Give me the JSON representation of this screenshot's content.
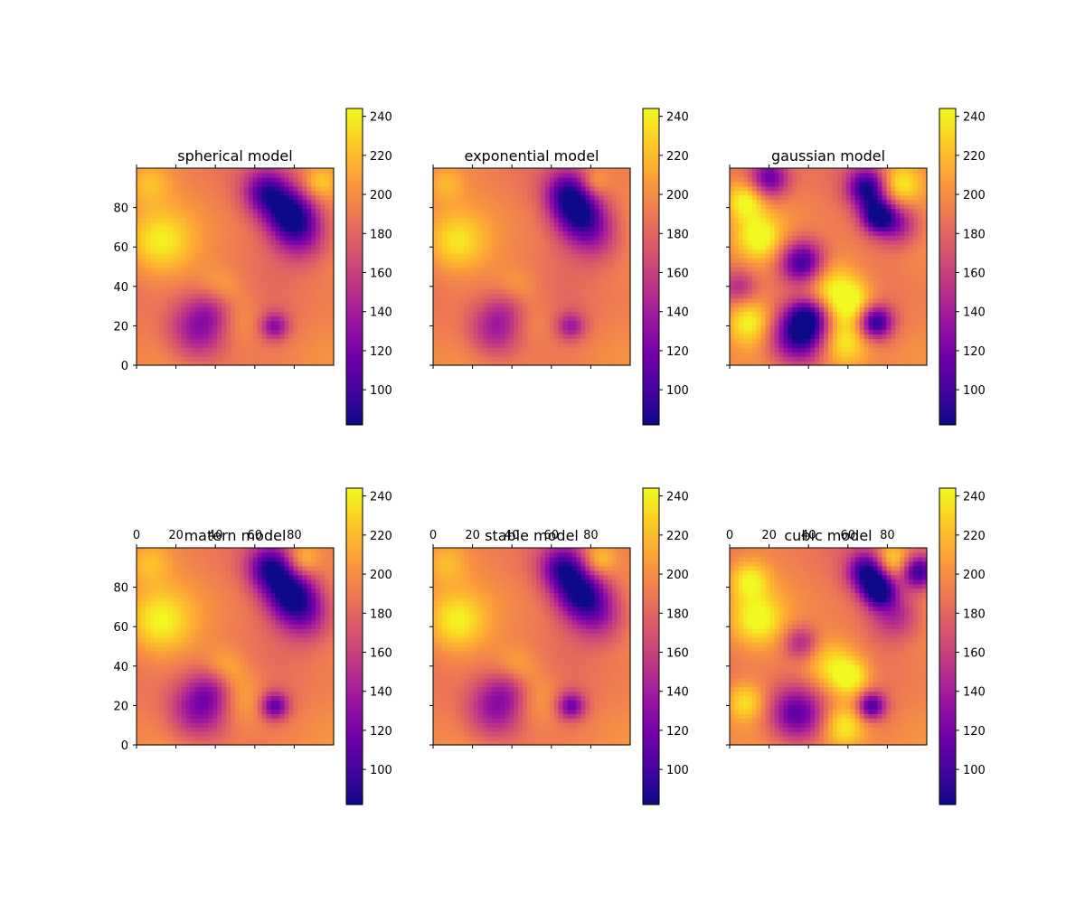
{
  "colormap": {
    "name": "plasma",
    "stops": [
      "#0d0887",
      "#46039f",
      "#7201a8",
      "#9c179e",
      "#bd3786",
      "#d8576b",
      "#ed7953",
      "#fb9f3a",
      "#fdca26",
      "#f0f921"
    ]
  },
  "chart_data": [
    {
      "type": "heatmap",
      "title": "spherical model",
      "x_tick_labels": [
        "",
        "",
        "",
        "",
        ""
      ],
      "y_tick_labels": [
        "0",
        "20",
        "40",
        "60",
        "80"
      ],
      "xlim": [
        0,
        100
      ],
      "ylim": [
        0,
        100
      ],
      "colorbar": {
        "range": [
          82,
          244
        ],
        "ticks": [
          "100",
          "120",
          "140",
          "160",
          "180",
          "200",
          "220",
          "240"
        ]
      },
      "features": [
        {
          "x": 12,
          "y": 63,
          "value": 232,
          "radius": 11
        },
        {
          "x": 78,
          "y": 77,
          "value": 95,
          "radius": 9
        },
        {
          "x": 66,
          "y": 88,
          "value": 110,
          "radius": 8
        },
        {
          "x": 84,
          "y": 66,
          "value": 135,
          "radius": 10
        },
        {
          "x": 32,
          "y": 18,
          "value": 125,
          "radius": 11
        },
        {
          "x": 40,
          "y": 30,
          "value": 150,
          "radius": 8
        },
        {
          "x": 70,
          "y": 20,
          "value": 130,
          "radius": 5
        },
        {
          "x": 48,
          "y": 24,
          "value": 222,
          "radius": 10
        },
        {
          "x": 42,
          "y": 38,
          "value": 224,
          "radius": 8
        },
        {
          "x": 93,
          "y": 93,
          "value": 228,
          "radius": 6
        },
        {
          "x": 6,
          "y": 93,
          "value": 222,
          "radius": 8
        }
      ]
    },
    {
      "type": "heatmap",
      "title": "exponential model",
      "x_tick_labels": [
        "",
        "",
        "",
        "",
        ""
      ],
      "y_tick_labels": [
        "",
        "",
        "",
        "",
        ""
      ],
      "xlim": [
        0,
        100
      ],
      "ylim": [
        0,
        100
      ],
      "colorbar": {
        "range": [
          82,
          244
        ],
        "ticks": [
          "100",
          "120",
          "140",
          "160",
          "180",
          "200",
          "220",
          "240"
        ]
      },
      "features": [
        {
          "x": 12,
          "y": 63,
          "value": 228,
          "radius": 10
        },
        {
          "x": 74,
          "y": 77,
          "value": 105,
          "radius": 9
        },
        {
          "x": 68,
          "y": 88,
          "value": 118,
          "radius": 8
        },
        {
          "x": 82,
          "y": 66,
          "value": 145,
          "radius": 10
        },
        {
          "x": 32,
          "y": 18,
          "value": 135,
          "radius": 10
        },
        {
          "x": 40,
          "y": 30,
          "value": 155,
          "radius": 8
        },
        {
          "x": 70,
          "y": 20,
          "value": 140,
          "radius": 5
        },
        {
          "x": 46,
          "y": 24,
          "value": 218,
          "radius": 9
        },
        {
          "x": 42,
          "y": 38,
          "value": 220,
          "radius": 8
        },
        {
          "x": 82,
          "y": 93,
          "value": 222,
          "radius": 5
        },
        {
          "x": 6,
          "y": 93,
          "value": 218,
          "radius": 7
        }
      ]
    },
    {
      "type": "heatmap",
      "title": "gaussian model",
      "x_tick_labels": [
        "",
        "",
        "",
        "",
        ""
      ],
      "y_tick_labels": [
        "",
        "",
        "",
        "",
        ""
      ],
      "xlim": [
        0,
        100
      ],
      "ylim": [
        0,
        100
      ],
      "colorbar": {
        "range": [
          82,
          244
        ],
        "ticks": [
          "100",
          "120",
          "140",
          "160",
          "180",
          "200",
          "220",
          "240"
        ]
      },
      "features": [
        {
          "x": 70,
          "y": 90,
          "value": 85,
          "radius": 7
        },
        {
          "x": 75,
          "y": 76,
          "value": 90,
          "radius": 6
        },
        {
          "x": 86,
          "y": 92,
          "value": 244,
          "radius": 8
        },
        {
          "x": 85,
          "y": 72,
          "value": 130,
          "radius": 8
        },
        {
          "x": 37,
          "y": 52,
          "value": 85,
          "radius": 8
        },
        {
          "x": 50,
          "y": 40,
          "value": 244,
          "radius": 11
        },
        {
          "x": 62,
          "y": 32,
          "value": 244,
          "radius": 8
        },
        {
          "x": 74,
          "y": 22,
          "value": 85,
          "radius": 6
        },
        {
          "x": 58,
          "y": 12,
          "value": 244,
          "radius": 9
        },
        {
          "x": 35,
          "y": 15,
          "value": 85,
          "radius": 10
        },
        {
          "x": 40,
          "y": 25,
          "value": 110,
          "radius": 7
        },
        {
          "x": 8,
          "y": 84,
          "value": 244,
          "radius": 7
        },
        {
          "x": 15,
          "y": 65,
          "value": 244,
          "radius": 8
        },
        {
          "x": 20,
          "y": 95,
          "value": 110,
          "radius": 7
        },
        {
          "x": 10,
          "y": 22,
          "value": 244,
          "radius": 8
        },
        {
          "x": 5,
          "y": 40,
          "value": 150,
          "radius": 6
        }
      ]
    },
    {
      "type": "heatmap",
      "title": "matern model",
      "x_tick_labels": [
        "0",
        "20",
        "40",
        "60",
        "80"
      ],
      "y_tick_labels": [
        "0",
        "20",
        "40",
        "60",
        "80"
      ],
      "xlim": [
        0,
        100
      ],
      "ylim": [
        0,
        100
      ],
      "colorbar": {
        "range": [
          82,
          244
        ],
        "ticks": [
          "100",
          "120",
          "140",
          "160",
          "180",
          "200",
          "220",
          "240"
        ]
      },
      "features": [
        {
          "x": 12,
          "y": 63,
          "value": 235,
          "radius": 11
        },
        {
          "x": 78,
          "y": 77,
          "value": 92,
          "radius": 9
        },
        {
          "x": 68,
          "y": 90,
          "value": 100,
          "radius": 8
        },
        {
          "x": 86,
          "y": 66,
          "value": 132,
          "radius": 10
        },
        {
          "x": 32,
          "y": 18,
          "value": 122,
          "radius": 11
        },
        {
          "x": 40,
          "y": 30,
          "value": 148,
          "radius": 8
        },
        {
          "x": 70,
          "y": 20,
          "value": 110,
          "radius": 5
        },
        {
          "x": 52,
          "y": 24,
          "value": 226,
          "radius": 10
        },
        {
          "x": 44,
          "y": 38,
          "value": 228,
          "radius": 8
        },
        {
          "x": 84,
          "y": 94,
          "value": 232,
          "radius": 6
        },
        {
          "x": 6,
          "y": 93,
          "value": 222,
          "radius": 8
        }
      ]
    },
    {
      "type": "heatmap",
      "title": "stable model",
      "x_tick_labels": [
        "0",
        "20",
        "40",
        "60",
        "80"
      ],
      "y_tick_labels": [
        "",
        "",
        "",
        "",
        ""
      ],
      "xlim": [
        0,
        100
      ],
      "ylim": [
        0,
        100
      ],
      "colorbar": {
        "range": [
          82,
          244
        ],
        "ticks": [
          "100",
          "120",
          "140",
          "160",
          "180",
          "200",
          "220",
          "240"
        ]
      },
      "features": [
        {
          "x": 12,
          "y": 63,
          "value": 233,
          "radius": 10
        },
        {
          "x": 75,
          "y": 77,
          "value": 98,
          "radius": 9
        },
        {
          "x": 66,
          "y": 90,
          "value": 108,
          "radius": 8
        },
        {
          "x": 84,
          "y": 66,
          "value": 138,
          "radius": 10
        },
        {
          "x": 32,
          "y": 18,
          "value": 128,
          "radius": 11
        },
        {
          "x": 40,
          "y": 30,
          "value": 150,
          "radius": 8
        },
        {
          "x": 70,
          "y": 20,
          "value": 118,
          "radius": 5
        },
        {
          "x": 50,
          "y": 24,
          "value": 224,
          "radius": 10
        },
        {
          "x": 42,
          "y": 38,
          "value": 226,
          "radius": 8
        },
        {
          "x": 84,
          "y": 94,
          "value": 232,
          "radius": 6
        },
        {
          "x": 6,
          "y": 93,
          "value": 220,
          "radius": 8
        }
      ]
    },
    {
      "type": "heatmap",
      "title": "cubic model",
      "x_tick_labels": [
        "0",
        "20",
        "40",
        "60",
        "80"
      ],
      "y_tick_labels": [
        "",
        "",
        "",
        "",
        ""
      ],
      "xlim": [
        0,
        100
      ],
      "ylim": [
        0,
        100
      ],
      "colorbar": {
        "range": [
          82,
          244
        ],
        "ticks": [
          "100",
          "120",
          "140",
          "160",
          "180",
          "200",
          "220",
          "240"
        ]
      },
      "features": [
        {
          "x": 70,
          "y": 88,
          "value": 88,
          "radius": 7
        },
        {
          "x": 76,
          "y": 78,
          "value": 90,
          "radius": 6
        },
        {
          "x": 82,
          "y": 94,
          "value": 244,
          "radius": 6
        },
        {
          "x": 96,
          "y": 88,
          "value": 90,
          "radius": 6
        },
        {
          "x": 84,
          "y": 66,
          "value": 140,
          "radius": 9
        },
        {
          "x": 36,
          "y": 52,
          "value": 140,
          "radius": 6
        },
        {
          "x": 52,
          "y": 40,
          "value": 240,
          "radius": 10
        },
        {
          "x": 62,
          "y": 34,
          "value": 238,
          "radius": 7
        },
        {
          "x": 72,
          "y": 20,
          "value": 100,
          "radius": 5
        },
        {
          "x": 58,
          "y": 10,
          "value": 244,
          "radius": 8
        },
        {
          "x": 34,
          "y": 16,
          "value": 105,
          "radius": 10
        },
        {
          "x": 10,
          "y": 84,
          "value": 238,
          "radius": 7
        },
        {
          "x": 14,
          "y": 64,
          "value": 240,
          "radius": 9
        },
        {
          "x": 8,
          "y": 22,
          "value": 235,
          "radius": 7
        }
      ]
    }
  ]
}
